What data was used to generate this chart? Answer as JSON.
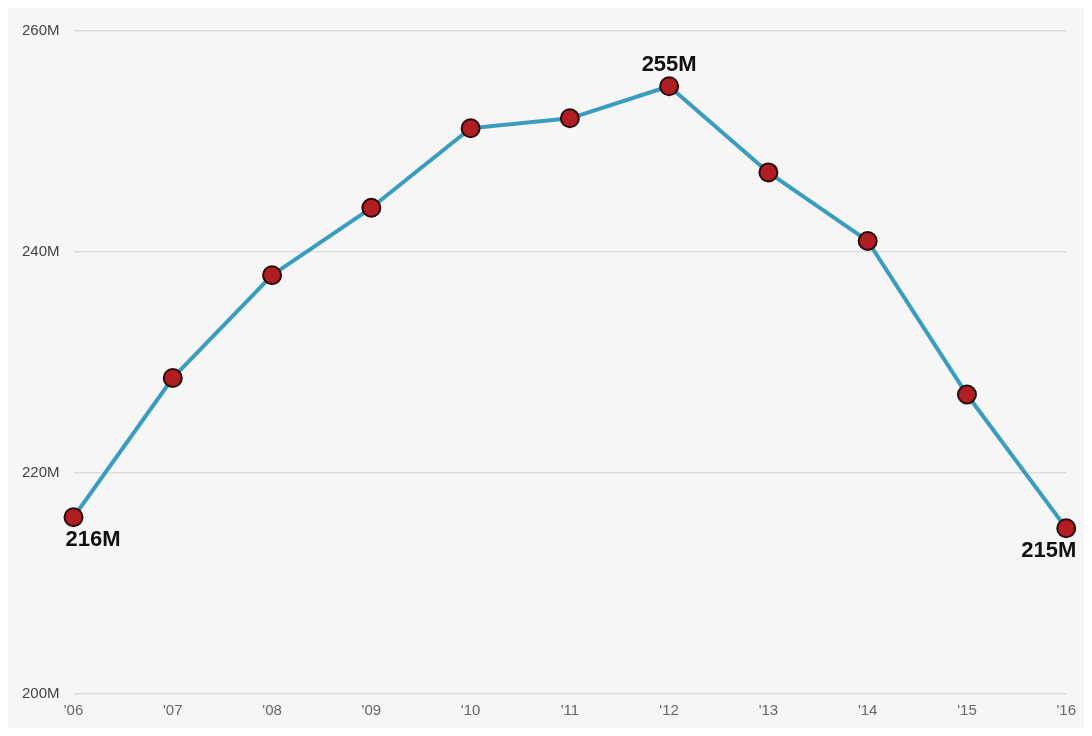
{
  "chart_data": {
    "type": "line",
    "categories": [
      "'06",
      "'07",
      "'08",
      "'09",
      "'10",
      "'11",
      "'12",
      "'13",
      "'14",
      "'15",
      "'16"
    ],
    "series": [
      {
        "color": "#3a9dbf",
        "values": [
          216,
          228.6,
          237.9,
          244,
          251.2,
          252.1,
          255,
          247.2,
          241,
          227.1,
          215
        ],
        "value_labels": [
          "216M",
          null,
          null,
          null,
          null,
          null,
          "255M",
          null,
          null,
          null,
          "215M"
        ]
      }
    ],
    "ylim": [
      200,
      260
    ],
    "yticks": [
      {
        "value": 200,
        "label": "200M"
      },
      {
        "value": 220,
        "label": "220M"
      },
      {
        "value": 240,
        "label": "240M"
      },
      {
        "value": 260,
        "label": "260M"
      }
    ],
    "grid": "y",
    "legend": false,
    "marker": "circle",
    "line_style": "solid"
  }
}
